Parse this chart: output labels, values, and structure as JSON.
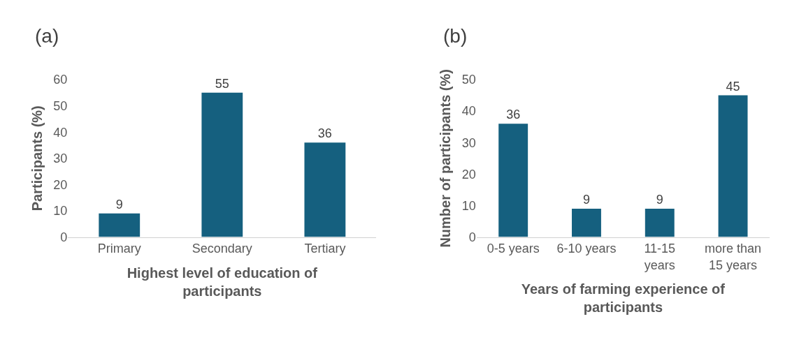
{
  "chart_data": [
    {
      "type": "bar",
      "title": "(a)",
      "xlabel": "Highest level of education of participants",
      "ylabel": "Participants (%)",
      "categories": [
        "Primary",
        "Secondary",
        "Tertiary"
      ],
      "values": [
        9,
        55,
        36
      ],
      "color": "#15607f",
      "ylim": [
        0,
        60
      ],
      "yticks": [
        0,
        10,
        20,
        30,
        40,
        50,
        60
      ],
      "data_labels": true
    },
    {
      "type": "bar",
      "title": "(b)",
      "xlabel": "Years of farming experience of participants",
      "ylabel": "Number of participants (%)",
      "categories": [
        "0-5 years",
        "6-10 years",
        "11-15 years",
        "more than 15 years"
      ],
      "values": [
        36,
        9,
        9,
        45
      ],
      "color": "#15607f",
      "ylim": [
        0,
        50
      ],
      "yticks": [
        0,
        10,
        20,
        30,
        40,
        50
      ],
      "data_labels": true
    }
  ]
}
